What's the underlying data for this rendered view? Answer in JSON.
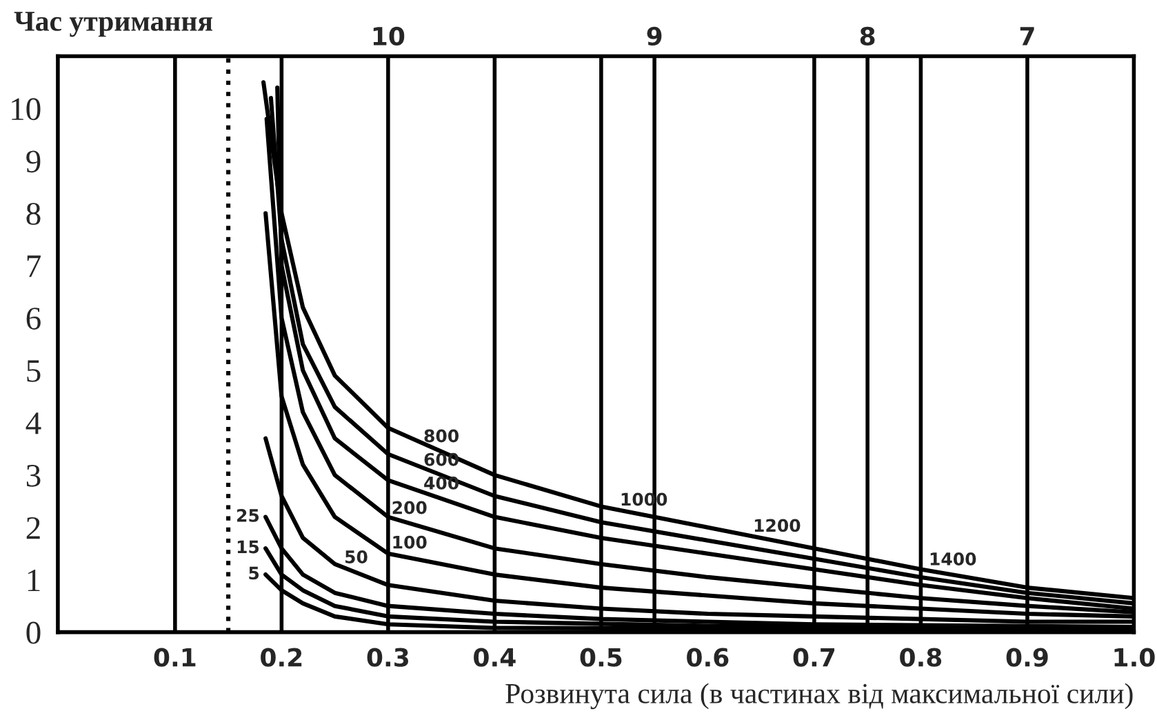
{
  "chart_data": {
    "type": "line",
    "xlabel": "Розвинута сила (в частинах від максимальної сили)",
    "ylabel": "Час утримання",
    "xlim": [
      -0.01,
      1.0
    ],
    "ylim": [
      0,
      11
    ],
    "xticks": [
      0.1,
      0.2,
      0.3,
      0.4,
      0.5,
      0.6,
      0.7,
      0.8,
      0.9,
      {
        "value": 1.0,
        "label": "1.0"
      }
    ],
    "yticks": [
      0,
      1,
      2,
      3,
      4,
      5,
      6,
      7,
      8,
      9,
      10
    ],
    "grid": false,
    "legend": false,
    "marker": "none",
    "line_style": "solid",
    "ref_lines": [
      {
        "axis": "x",
        "value": 0.1,
        "color": "#000000",
        "line_style": "solid"
      },
      {
        "axis": "x",
        "value": 0.15,
        "color": "#000000",
        "line_style": "dotted"
      },
      {
        "axis": "x",
        "value": 0.2,
        "color": "#000000",
        "line_style": "solid"
      },
      {
        "axis": "x",
        "value": 0.3,
        "color": "#000000",
        "line_style": "solid"
      },
      {
        "axis": "x",
        "value": 0.4,
        "color": "#000000",
        "line_style": "solid"
      },
      {
        "axis": "x",
        "value": 0.5,
        "color": "#000000",
        "line_style": "solid"
      },
      {
        "axis": "x",
        "value": 0.55,
        "color": "#000000",
        "line_style": "solid"
      },
      {
        "axis": "x",
        "value": 0.7,
        "color": "#000000",
        "line_style": "solid"
      },
      {
        "axis": "x",
        "value": 0.75,
        "color": "#000000",
        "line_style": "solid"
      },
      {
        "axis": "x",
        "value": 0.8,
        "color": "#000000",
        "line_style": "solid"
      },
      {
        "axis": "x",
        "value": 0.9,
        "color": "#000000",
        "line_style": "solid"
      }
    ],
    "series": [
      {
        "color": "#000000",
        "x": [
          0.183,
          0.2,
          0.22,
          0.25,
          0.3,
          0.4,
          0.5,
          0.6,
          0.7,
          0.8,
          0.9,
          1.0
        ],
        "values": [
          10.5,
          8,
          6.2,
          4.9,
          3.9,
          3.0,
          2.4,
          2.0,
          1.6,
          1.2,
          0.85,
          0.65
        ]
      },
      {
        "color": "#000000",
        "x": [
          0.19,
          0.2,
          0.22,
          0.25,
          0.3,
          0.4,
          0.5,
          0.6,
          0.7,
          0.8,
          0.9,
          1.0
        ],
        "values": [
          10.2,
          7.5,
          5.5,
          4.3,
          3.4,
          2.6,
          2.1,
          1.75,
          1.4,
          1.05,
          0.75,
          0.55
        ]
      },
      {
        "color": "#000000",
        "x": [
          0.196,
          0.2,
          0.22,
          0.25,
          0.3,
          0.4,
          0.5,
          0.6,
          0.7,
          0.8,
          0.9,
          1.0
        ],
        "values": [
          10.4,
          7,
          5,
          3.7,
          2.9,
          2.2,
          1.8,
          1.5,
          1.2,
          0.9,
          0.65,
          0.45
        ]
      },
      {
        "color": "#000000",
        "x": [
          0.186,
          0.2,
          0.22,
          0.25,
          0.3,
          0.4,
          0.5,
          0.6,
          0.7,
          0.8,
          0.9,
          1.0
        ],
        "values": [
          9.8,
          6,
          4.2,
          3.0,
          2.2,
          1.6,
          1.3,
          1.05,
          0.85,
          0.65,
          0.5,
          0.38
        ]
      },
      {
        "color": "#000000",
        "x": [
          0.185,
          0.2,
          0.22,
          0.25,
          0.3,
          0.4,
          0.5,
          0.6,
          0.7,
          0.8,
          0.9,
          1.0
        ],
        "values": [
          8,
          4.5,
          3.2,
          2.2,
          1.5,
          1.1,
          0.85,
          0.7,
          0.55,
          0.45,
          0.35,
          0.3
        ]
      },
      {
        "color": "#000000",
        "x": [
          0.185,
          0.2,
          0.22,
          0.25,
          0.3,
          0.4,
          0.5,
          0.6,
          0.7,
          0.8,
          0.9,
          1.0
        ],
        "values": [
          3.7,
          2.6,
          1.8,
          1.3,
          0.9,
          0.6,
          0.45,
          0.35,
          0.3,
          0.25,
          0.2,
          0.2
        ]
      },
      {
        "color": "#000000",
        "x": [
          0.185,
          0.2,
          0.22,
          0.25,
          0.3,
          0.4,
          0.5,
          0.7,
          1.0
        ],
        "values": [
          2.2,
          1.6,
          1.1,
          0.75,
          0.5,
          0.35,
          0.25,
          0.15,
          0.1
        ]
      },
      {
        "color": "#000000",
        "x": [
          0.185,
          0.2,
          0.22,
          0.25,
          0.3,
          0.4,
          0.6,
          1.0
        ],
        "values": [
          1.6,
          1.1,
          0.8,
          0.5,
          0.3,
          0.2,
          0.12,
          0.08
        ]
      },
      {
        "color": "#000000",
        "x": [
          0.185,
          0.2,
          0.22,
          0.25,
          0.3,
          0.4,
          1.0
        ],
        "values": [
          1.1,
          0.8,
          0.55,
          0.3,
          0.15,
          0.08,
          0.05
        ]
      }
    ],
    "annotations": [
      {
        "text": "5",
        "x": 0.185,
        "y": 1.1
      },
      {
        "text": "15",
        "x": 0.185,
        "y": 1.6
      },
      {
        "text": "25",
        "x": 0.185,
        "y": 2.2
      },
      {
        "text": "50",
        "x": 0.27,
        "y": 1.14
      },
      {
        "text": "100",
        "x": 0.32,
        "y": 1.42
      },
      {
        "text": "200",
        "x": 0.32,
        "y": 2.08
      },
      {
        "text": "400",
        "x": 0.35,
        "y": 2.55
      },
      {
        "text": "600",
        "x": 0.35,
        "y": 3.0
      },
      {
        "text": "800",
        "x": 0.35,
        "y": 3.45
      },
      {
        "text": "1000",
        "x": 0.54,
        "y": 2.24
      },
      {
        "text": "1200",
        "x": 0.665,
        "y": 1.74
      },
      {
        "text": "1400",
        "x": 0.83,
        "y": 1.1
      },
      {
        "text": "10",
        "x": 0.3,
        "y": 11
      },
      {
        "text": "9",
        "x": 0.55,
        "y": 11
      },
      {
        "text": "8",
        "x": 0.75,
        "y": 11
      },
      {
        "text": "7",
        "x": 0.9,
        "y": 11
      }
    ]
  }
}
